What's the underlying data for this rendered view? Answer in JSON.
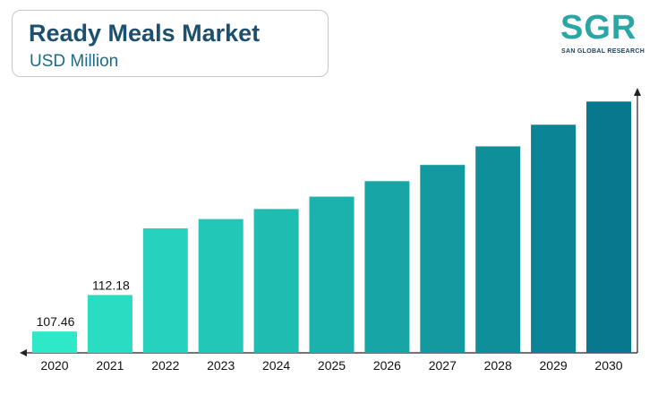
{
  "header": {
    "title": "Ready Meals Market",
    "subtitle": "USD Million"
  },
  "logo": {
    "main": "SGR",
    "sub": "SAN GLOBAL RESEARCH"
  },
  "chart_data": {
    "type": "bar",
    "title": "Ready Meals Market",
    "subtitle": "USD Million",
    "xlabel": "",
    "ylabel": "",
    "categories": [
      "2020",
      "2021",
      "2022",
      "2023",
      "2024",
      "2025",
      "2026",
      "2027",
      "2028",
      "2029",
      "2030"
    ],
    "values": [
      107.46,
      112.18,
      120.8,
      122.0,
      123.3,
      124.9,
      126.9,
      129.0,
      131.4,
      134.2,
      137.2
    ],
    "data_labels": [
      "107.46",
      "112.18",
      "",
      "",
      "",
      "",
      "",
      "",
      "",
      "",
      ""
    ],
    "ylim": [
      104.7,
      138.4
    ],
    "grid": false,
    "legend": "none",
    "colors": {
      "start": "#2ee8c8",
      "end": "#07798f",
      "axis": "#222222"
    }
  }
}
